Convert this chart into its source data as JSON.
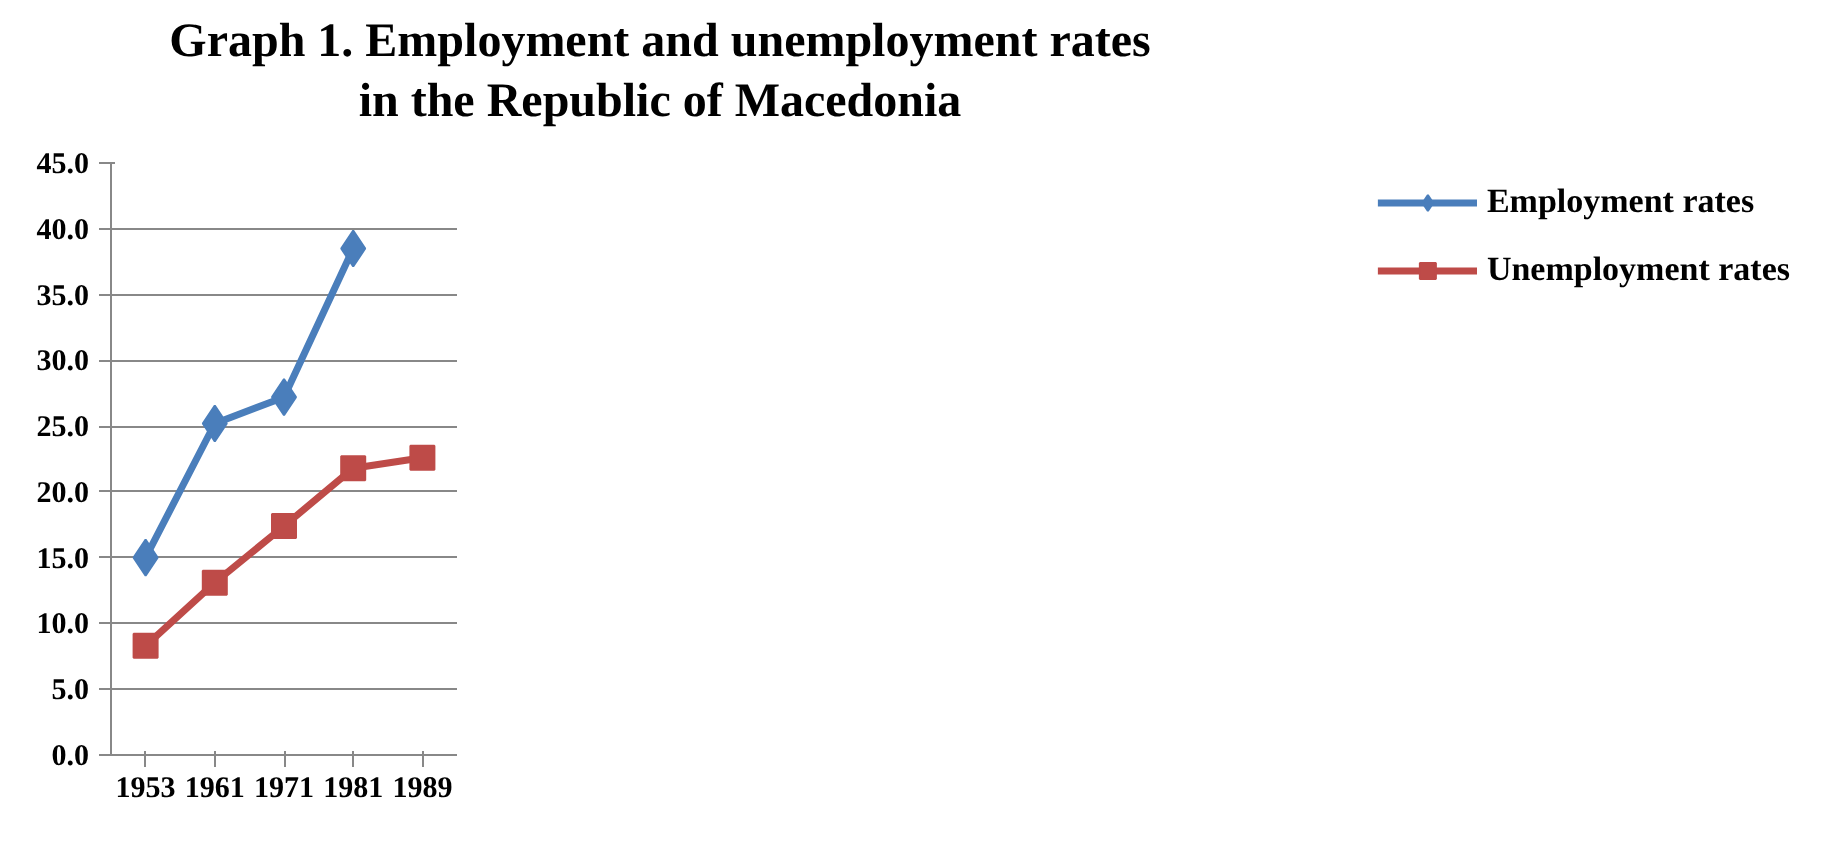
{
  "chart_data": {
    "type": "line",
    "title": "Graph 1.  Employment and unemployment rates\nin the Republic of Macedonia",
    "categories": [
      "1953",
      "1961",
      "1971",
      "1981",
      "1989"
    ],
    "series": [
      {
        "name": "Employment rates",
        "color": "#4a7ebb",
        "marker": "diamond",
        "values": [
          15.0,
          25.2,
          27.2,
          38.5,
          null
        ]
      },
      {
        "name": "Unemployment rates",
        "color": "#be4b48",
        "marker": "square",
        "values": [
          8.3,
          13.1,
          17.4,
          21.8,
          22.6
        ]
      }
    ],
    "ylim": [
      0,
      45
    ],
    "yticks": [
      {
        "value": 0,
        "label": "0.0"
      },
      {
        "value": 5,
        "label": "5.0"
      },
      {
        "value": 10,
        "label": "10.0"
      },
      {
        "value": 15,
        "label": "15.0"
      },
      {
        "value": 20,
        "label": "20.0"
      },
      {
        "value": 25,
        "label": "25.0"
      },
      {
        "value": 30,
        "label": "30.0"
      },
      {
        "value": 35,
        "label": "35.0"
      },
      {
        "value": 40,
        "label": "40.0"
      },
      {
        "value": 45,
        "label": "45.0"
      }
    ],
    "grid": "y",
    "legend": "right"
  }
}
